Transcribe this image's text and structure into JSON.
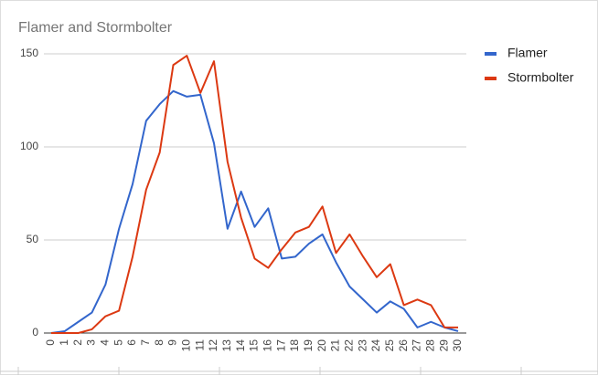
{
  "chart_data": {
    "type": "line",
    "title": "Flamer and Stormbolter",
    "categories": [
      "0",
      "1",
      "2",
      "3",
      "4",
      "5",
      "6",
      "7",
      "8",
      "9",
      "10",
      "11",
      "12",
      "13",
      "14",
      "15",
      "16",
      "17",
      "18",
      "19",
      "20",
      "21",
      "22",
      "23",
      "24",
      "25",
      "26",
      "27",
      "28",
      "29",
      "30"
    ],
    "series": [
      {
        "name": "Flamer",
        "color": "#3366cc",
        "values": [
          0,
          1,
          6,
          11,
          26,
          56,
          80,
          114,
          123,
          130,
          127,
          128,
          102,
          56,
          76,
          57,
          67,
          40,
          41,
          48,
          53,
          38,
          25,
          18,
          11,
          17,
          13,
          3,
          6,
          3,
          1
        ]
      },
      {
        "name": "Stormbolter",
        "color": "#dc3912",
        "values": [
          0,
          0,
          0,
          2,
          9,
          12,
          41,
          77,
          97,
          144,
          149,
          129,
          146,
          92,
          62,
          40,
          35,
          45,
          54,
          57,
          68,
          43,
          53,
          41,
          30,
          37,
          15,
          18,
          15,
          3,
          3
        ]
      }
    ],
    "ylim": [
      0,
      150
    ],
    "yticks": [
      0,
      50,
      100,
      150
    ],
    "grid": true,
    "legend": "right"
  }
}
